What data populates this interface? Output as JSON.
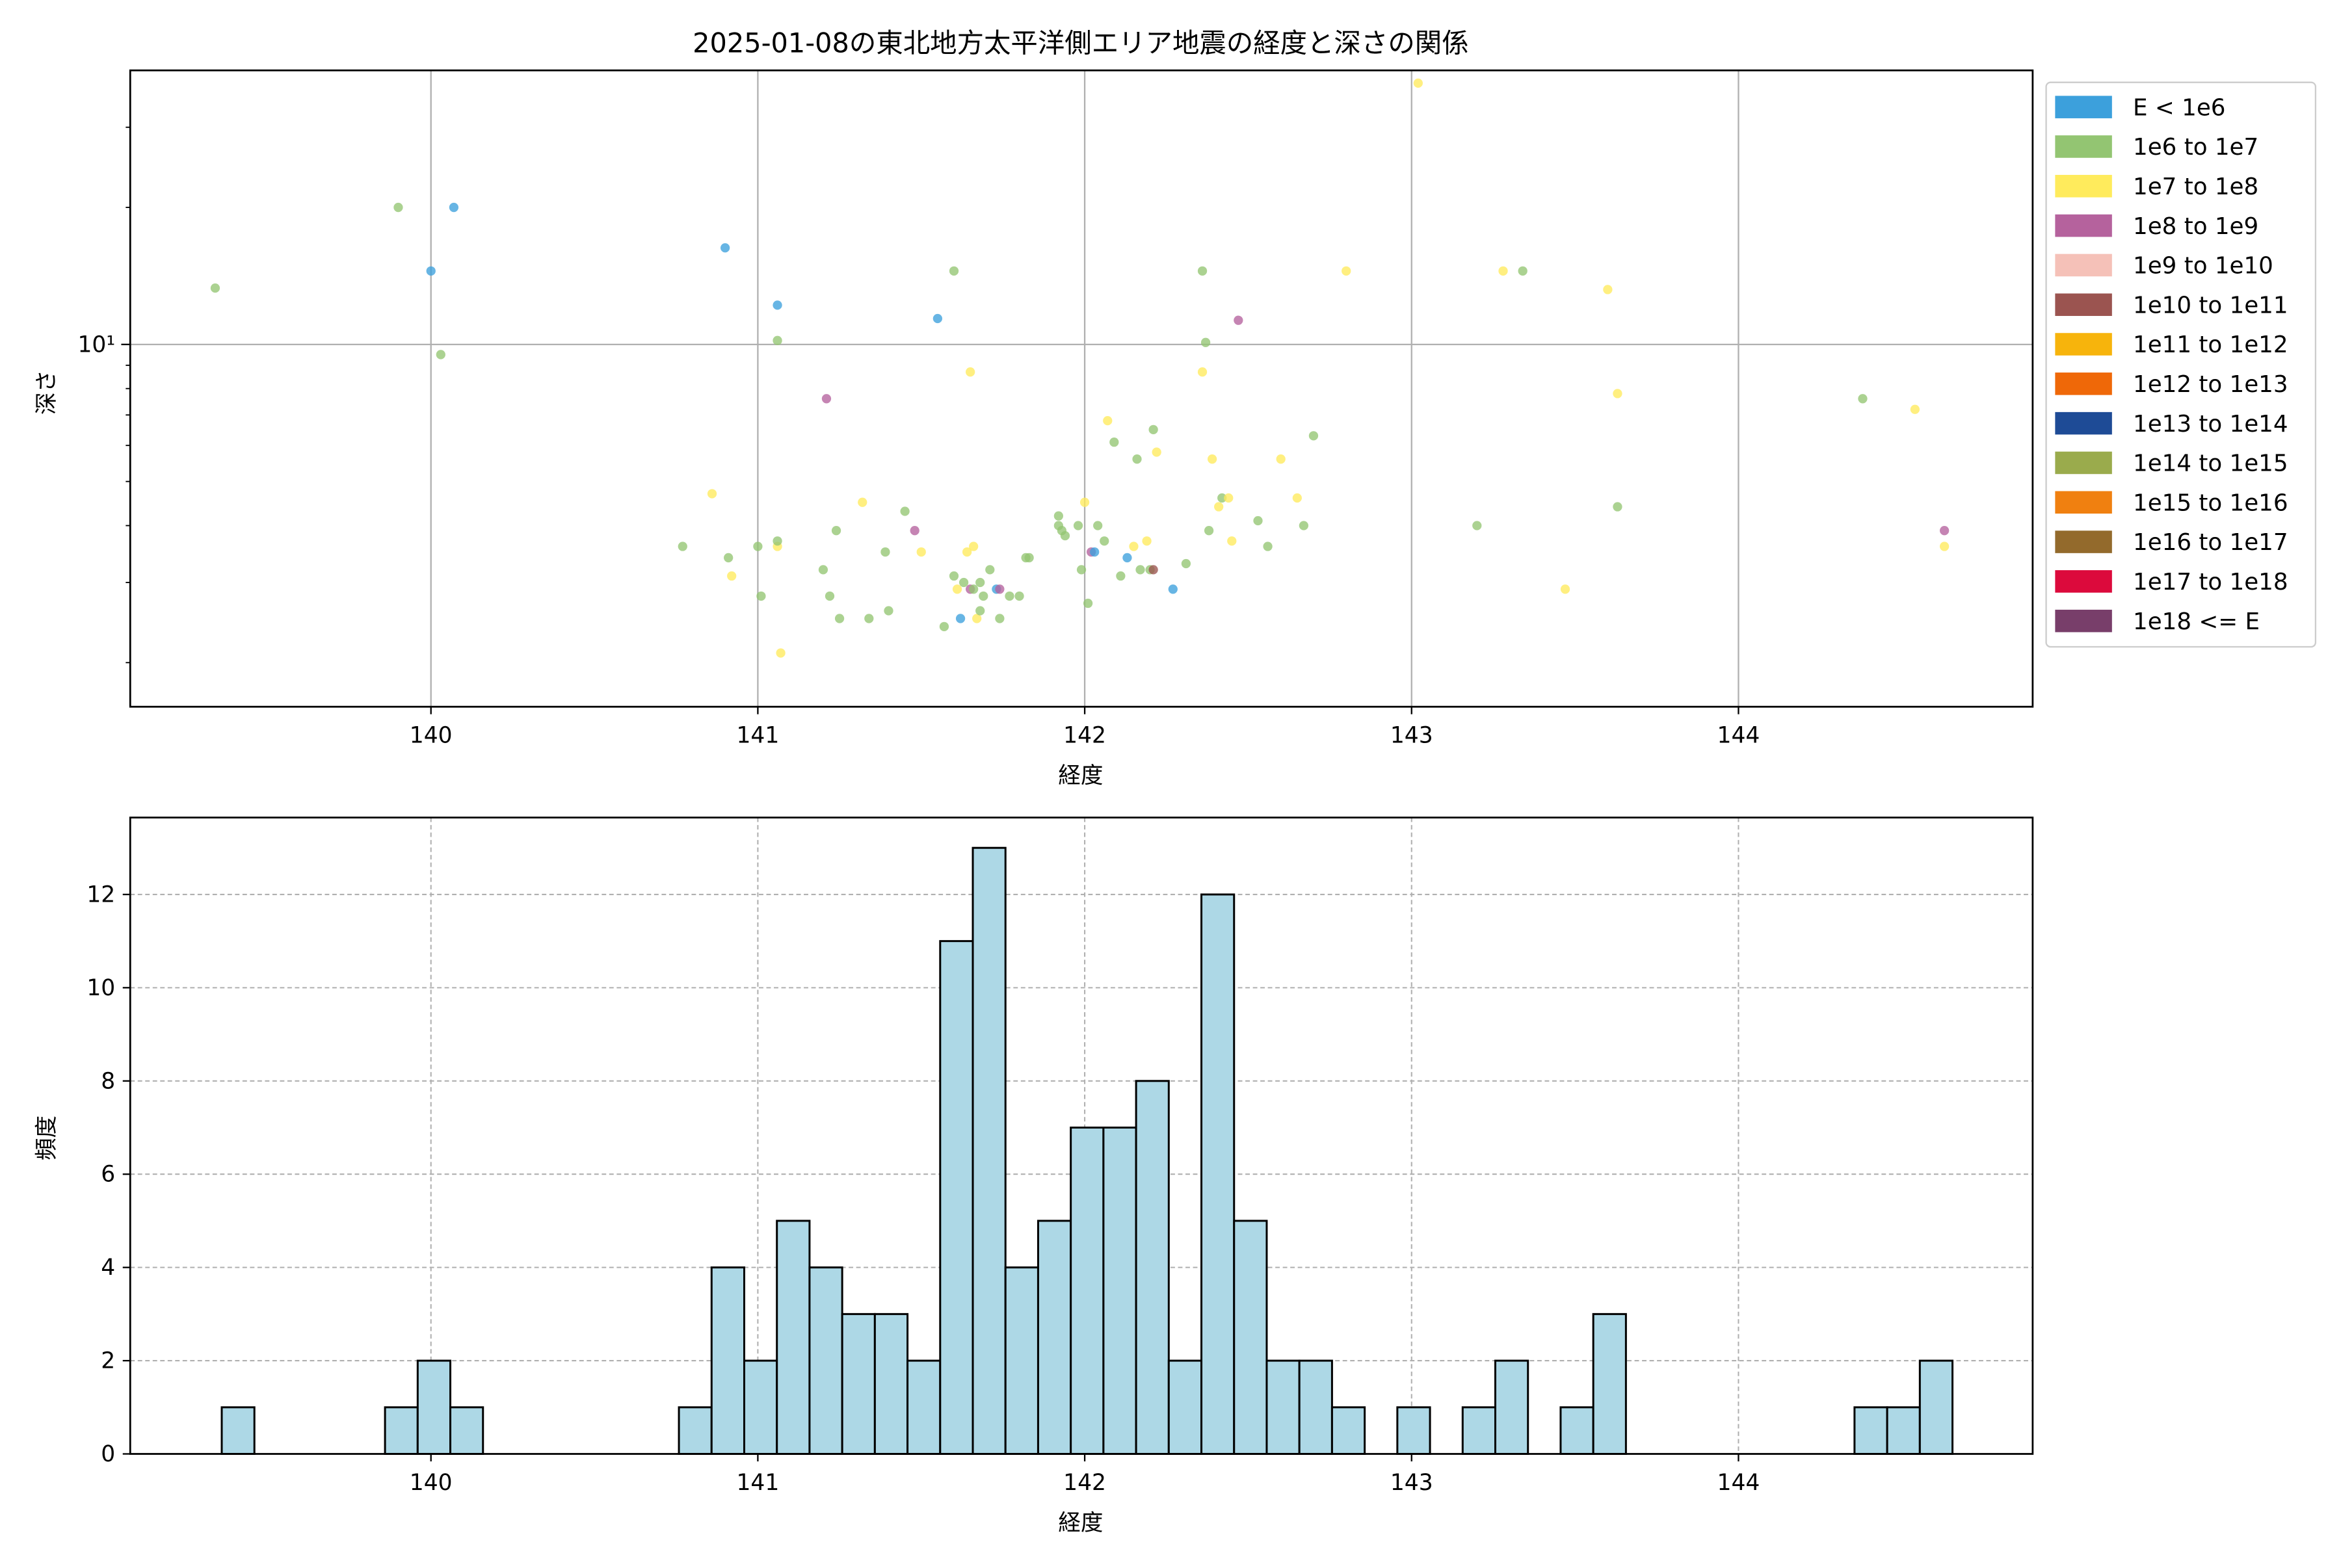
{
  "chart_data": [
    {
      "type": "scatter",
      "title": "2025-01-08の東北地方太平洋側エリア地震の経度と深さの関係",
      "xlabel": "経度",
      "ylabel": "深さ",
      "xlim": [
        139.08,
        144.9
      ],
      "ylim": [
        1.6,
        40
      ],
      "yscale": "log",
      "xticks": [
        "140",
        "141",
        "142",
        "143",
        "144"
      ],
      "ytick_label": "10¹",
      "grid": true,
      "legend_position": "outside-right",
      "legend": [
        {
          "label": "E < 1e6",
          "color": "#3ca0dc"
        },
        {
          "label": "1e6 to 1e7",
          "color": "#93c572"
        },
        {
          "label": "1e7 to 1e8",
          "color": "#ffeb5c"
        },
        {
          "label": "1e8 to 1e9",
          "color": "#b5629d"
        },
        {
          "label": "1e9 to 1e10",
          "color": "#f5c1b8"
        },
        {
          "label": "1e10 to 1e11",
          "color": "#9b5450"
        },
        {
          "label": "1e11 to 1e12",
          "color": "#f7b40c"
        },
        {
          "label": "1e12 to 1e13",
          "color": "#ef6808"
        },
        {
          "label": "1e13 to 1e14",
          "color": "#1e4b96"
        },
        {
          "label": "1e14 to 1e15",
          "color": "#9aab4c"
        },
        {
          "label": "1e15 to 1e16",
          "color": "#f08010"
        },
        {
          "label": "1e16 to 1e17",
          "color": "#936a2c"
        },
        {
          "label": "1e17 to 1e18",
          "color": "#dc0a3c"
        },
        {
          "label": "1e18 <= E",
          "color": "#783e6a"
        }
      ],
      "points": [
        {
          "x": 139.34,
          "y": 13.3,
          "c": 1
        },
        {
          "x": 139.9,
          "y": 20.0,
          "c": 1
        },
        {
          "x": 140.07,
          "y": 20.0,
          "c": 0
        },
        {
          "x": 140.0,
          "y": 14.5,
          "c": 0
        },
        {
          "x": 140.03,
          "y": 9.5,
          "c": 1
        },
        {
          "x": 140.9,
          "y": 16.3,
          "c": 0
        },
        {
          "x": 141.06,
          "y": 12.2,
          "c": 0
        },
        {
          "x": 141.06,
          "y": 10.2,
          "c": 1
        },
        {
          "x": 141.55,
          "y": 11.4,
          "c": 0
        },
        {
          "x": 141.6,
          "y": 14.5,
          "c": 1
        },
        {
          "x": 141.65,
          "y": 8.7,
          "c": 2
        },
        {
          "x": 141.21,
          "y": 7.6,
          "c": 3
        },
        {
          "x": 142.36,
          "y": 14.5,
          "c": 1
        },
        {
          "x": 142.37,
          "y": 10.1,
          "c": 1
        },
        {
          "x": 142.47,
          "y": 11.3,
          "c": 3
        },
        {
          "x": 142.36,
          "y": 8.7,
          "c": 2
        },
        {
          "x": 142.8,
          "y": 14.5,
          "c": 2
        },
        {
          "x": 143.02,
          "y": 37.5,
          "c": 2
        },
        {
          "x": 143.28,
          "y": 14.5,
          "c": 2
        },
        {
          "x": 143.34,
          "y": 14.5,
          "c": 1
        },
        {
          "x": 143.6,
          "y": 13.2,
          "c": 2
        },
        {
          "x": 143.63,
          "y": 7.8,
          "c": 2
        },
        {
          "x": 144.38,
          "y": 7.6,
          "c": 1
        },
        {
          "x": 144.54,
          "y": 7.2,
          "c": 2
        },
        {
          "x": 140.77,
          "y": 3.6,
          "c": 1
        },
        {
          "x": 140.86,
          "y": 4.7,
          "c": 2
        },
        {
          "x": 140.91,
          "y": 3.4,
          "c": 1
        },
        {
          "x": 140.92,
          "y": 3.1,
          "c": 2
        },
        {
          "x": 141.0,
          "y": 3.6,
          "c": 1
        },
        {
          "x": 141.01,
          "y": 2.8,
          "c": 1
        },
        {
          "x": 141.06,
          "y": 3.6,
          "c": 2
        },
        {
          "x": 141.06,
          "y": 3.7,
          "c": 1
        },
        {
          "x": 141.07,
          "y": 2.1,
          "c": 2
        },
        {
          "x": 141.2,
          "y": 3.2,
          "c": 1
        },
        {
          "x": 141.22,
          "y": 2.8,
          "c": 1
        },
        {
          "x": 141.24,
          "y": 3.9,
          "c": 1
        },
        {
          "x": 141.25,
          "y": 2.5,
          "c": 1
        },
        {
          "x": 141.32,
          "y": 4.5,
          "c": 2
        },
        {
          "x": 141.34,
          "y": 2.5,
          "c": 1
        },
        {
          "x": 141.39,
          "y": 3.5,
          "c": 1
        },
        {
          "x": 141.4,
          "y": 2.6,
          "c": 1
        },
        {
          "x": 141.45,
          "y": 4.3,
          "c": 1
        },
        {
          "x": 141.48,
          "y": 3.9,
          "c": 3
        },
        {
          "x": 141.5,
          "y": 3.5,
          "c": 2
        },
        {
          "x": 141.57,
          "y": 2.4,
          "c": 1
        },
        {
          "x": 141.6,
          "y": 3.1,
          "c": 1
        },
        {
          "x": 141.61,
          "y": 2.9,
          "c": 2
        },
        {
          "x": 141.62,
          "y": 2.5,
          "c": 0
        },
        {
          "x": 141.63,
          "y": 3.0,
          "c": 1
        },
        {
          "x": 141.64,
          "y": 3.5,
          "c": 2
        },
        {
          "x": 141.65,
          "y": 2.9,
          "c": 3
        },
        {
          "x": 141.66,
          "y": 2.9,
          "c": 1
        },
        {
          "x": 141.66,
          "y": 3.6,
          "c": 2
        },
        {
          "x": 141.67,
          "y": 2.5,
          "c": 2
        },
        {
          "x": 141.68,
          "y": 3.0,
          "c": 1
        },
        {
          "x": 141.69,
          "y": 2.8,
          "c": 1
        },
        {
          "x": 141.68,
          "y": 2.6,
          "c": 1
        },
        {
          "x": 141.71,
          "y": 3.2,
          "c": 1
        },
        {
          "x": 141.73,
          "y": 2.9,
          "c": 0
        },
        {
          "x": 141.74,
          "y": 2.9,
          "c": 3
        },
        {
          "x": 141.74,
          "y": 2.5,
          "c": 1
        },
        {
          "x": 141.77,
          "y": 2.8,
          "c": 1
        },
        {
          "x": 141.8,
          "y": 2.8,
          "c": 1
        },
        {
          "x": 141.82,
          "y": 3.4,
          "c": 1
        },
        {
          "x": 141.83,
          "y": 3.4,
          "c": 1
        },
        {
          "x": 141.92,
          "y": 4.2,
          "c": 1
        },
        {
          "x": 141.92,
          "y": 4.0,
          "c": 1
        },
        {
          "x": 141.93,
          "y": 3.9,
          "c": 1
        },
        {
          "x": 141.94,
          "y": 3.8,
          "c": 1
        },
        {
          "x": 141.98,
          "y": 4.0,
          "c": 1
        },
        {
          "x": 141.99,
          "y": 3.2,
          "c": 1
        },
        {
          "x": 142.0,
          "y": 4.5,
          "c": 2
        },
        {
          "x": 142.01,
          "y": 2.7,
          "c": 1
        },
        {
          "x": 142.02,
          "y": 3.5,
          "c": 3
        },
        {
          "x": 142.03,
          "y": 3.5,
          "c": 0
        },
        {
          "x": 142.04,
          "y": 4.0,
          "c": 1
        },
        {
          "x": 142.06,
          "y": 3.7,
          "c": 1
        },
        {
          "x": 142.07,
          "y": 6.8,
          "c": 2
        },
        {
          "x": 142.09,
          "y": 6.1,
          "c": 1
        },
        {
          "x": 142.11,
          "y": 3.1,
          "c": 1
        },
        {
          "x": 142.13,
          "y": 3.4,
          "c": 0
        },
        {
          "x": 142.15,
          "y": 3.6,
          "c": 2
        },
        {
          "x": 142.16,
          "y": 5.6,
          "c": 1
        },
        {
          "x": 142.17,
          "y": 3.2,
          "c": 1
        },
        {
          "x": 142.19,
          "y": 3.7,
          "c": 2
        },
        {
          "x": 142.2,
          "y": 3.2,
          "c": 1
        },
        {
          "x": 142.21,
          "y": 3.2,
          "c": 5
        },
        {
          "x": 142.21,
          "y": 6.5,
          "c": 1
        },
        {
          "x": 142.22,
          "y": 5.8,
          "c": 2
        },
        {
          "x": 142.27,
          "y": 2.9,
          "c": 0
        },
        {
          "x": 142.31,
          "y": 3.3,
          "c": 1
        },
        {
          "x": 142.38,
          "y": 3.9,
          "c": 1
        },
        {
          "x": 142.39,
          "y": 5.6,
          "c": 2
        },
        {
          "x": 142.41,
          "y": 4.4,
          "c": 2
        },
        {
          "x": 142.42,
          "y": 4.6,
          "c": 1
        },
        {
          "x": 142.44,
          "y": 4.6,
          "c": 2
        },
        {
          "x": 142.45,
          "y": 3.7,
          "c": 2
        },
        {
          "x": 142.53,
          "y": 4.1,
          "c": 1
        },
        {
          "x": 142.56,
          "y": 3.6,
          "c": 1
        },
        {
          "x": 142.6,
          "y": 5.6,
          "c": 2
        },
        {
          "x": 142.65,
          "y": 4.6,
          "c": 2
        },
        {
          "x": 142.67,
          "y": 4.0,
          "c": 1
        },
        {
          "x": 142.7,
          "y": 6.3,
          "c": 1
        },
        {
          "x": 143.2,
          "y": 4.0,
          "c": 1
        },
        {
          "x": 143.47,
          "y": 2.9,
          "c": 2
        },
        {
          "x": 143.63,
          "y": 4.4,
          "c": 1
        },
        {
          "x": 144.63,
          "y": 3.9,
          "c": 3
        },
        {
          "x": 144.63,
          "y": 3.6,
          "c": 2
        }
      ]
    },
    {
      "type": "bar",
      "title": "",
      "xlabel": "経度",
      "ylabel": "頻度",
      "xlim": [
        139.08,
        144.9
      ],
      "ylim": [
        0,
        13.65
      ],
      "xticks": [
        "140",
        "141",
        "142",
        "143",
        "144"
      ],
      "yticks": [
        "0",
        "2",
        "4",
        "6",
        "8",
        "10",
        "12"
      ],
      "grid": true,
      "bar_color": "#add8e6",
      "bin_width": 0.0999,
      "bin_start": 139.36,
      "values": [
        1,
        0,
        0,
        0,
        0,
        1,
        2,
        1,
        0,
        0,
        0,
        0,
        0,
        0,
        1,
        4,
        2,
        5,
        4,
        3,
        3,
        2,
        11,
        13,
        4,
        5,
        7,
        7,
        8,
        2,
        12,
        5,
        2,
        2,
        1,
        0,
        1,
        0,
        1,
        2,
        0,
        1,
        3,
        0,
        0,
        0,
        0,
        0,
        0,
        0,
        1,
        1,
        2
      ]
    }
  ]
}
